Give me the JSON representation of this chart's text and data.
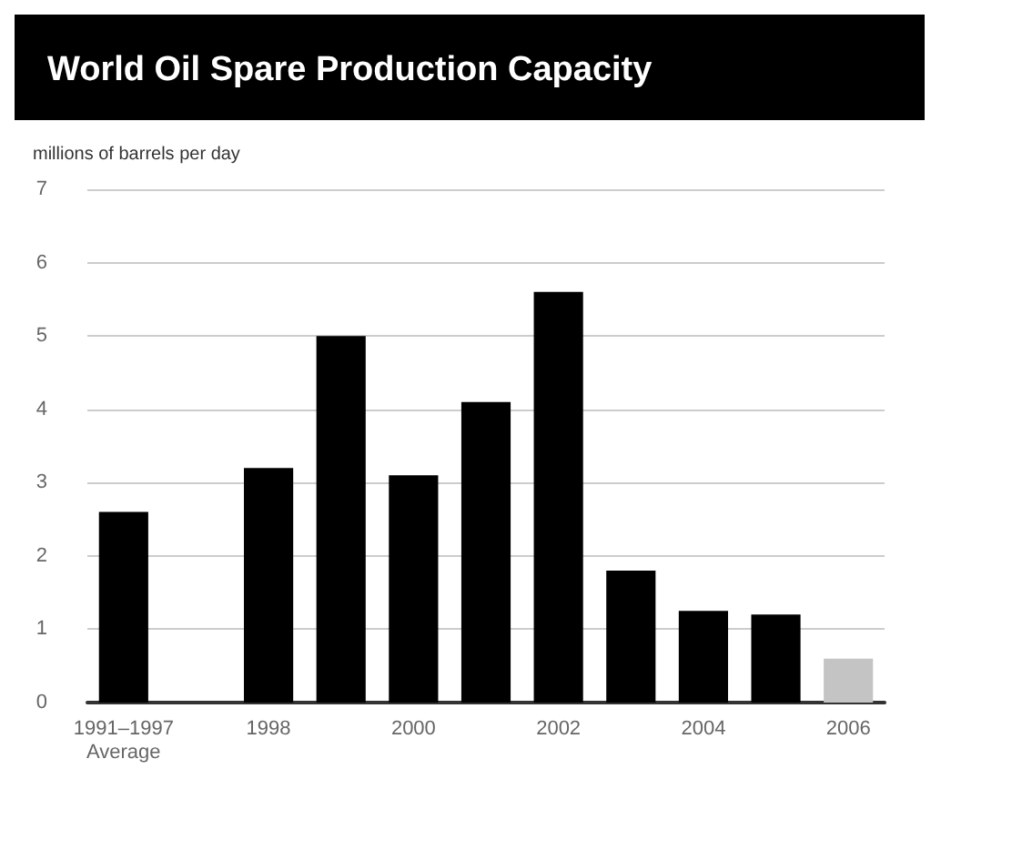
{
  "chart_data": {
    "type": "bar",
    "title": "World Oil Spare Production Capacity",
    "ylabel": "millions of barrels per day",
    "categories": [
      "1991–1997\nAverage",
      null,
      "1998",
      null,
      "2000",
      null,
      "2002",
      null,
      "2004",
      null,
      "2006"
    ],
    "values": [
      2.6,
      null,
      3.2,
      5.0,
      3.1,
      4.1,
      5.6,
      1.8,
      1.25,
      1.2,
      0.6
    ],
    "colors": [
      "#000000",
      "#000000",
      "#000000",
      "#000000",
      "#000000",
      "#000000",
      "#000000",
      "#000000",
      "#000000",
      "#000000",
      "#c4c4c4"
    ],
    "ylim": [
      0,
      7
    ],
    "yticks": [
      0,
      1,
      2,
      3,
      4,
      5,
      6,
      7
    ],
    "grid": "y"
  }
}
